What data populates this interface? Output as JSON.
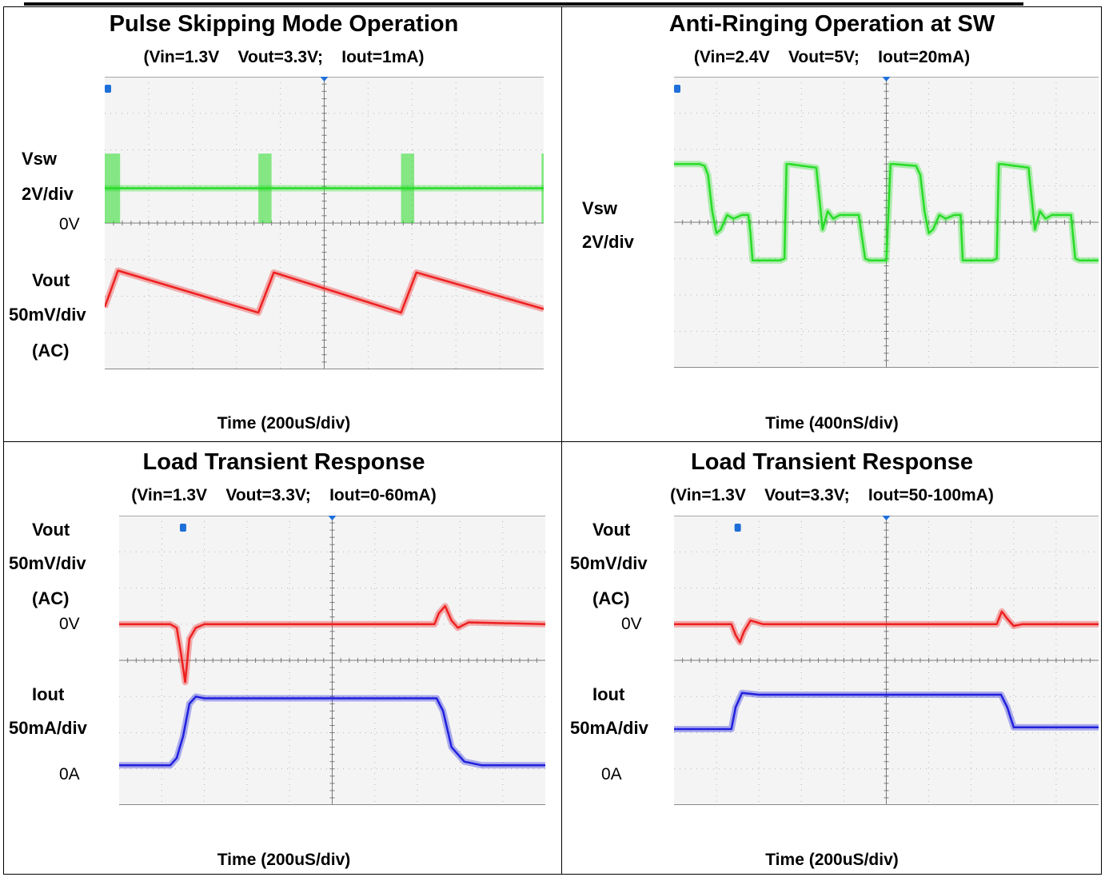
{
  "panels": [
    {
      "title": "Pulse Skipping Mode Operation",
      "conditions": "(Vin=1.3V    Vout=3.3V;    Iout=1mA)",
      "time_label": "Time (200uS/div)",
      "labels": {
        "vsw": "Vsw",
        "vsw_scale": "2V/div",
        "vsw_zero": "0V",
        "vout": "Vout",
        "vout_scale": "50mV/div",
        "vout_coupling": "(AC)"
      }
    },
    {
      "title": "Anti-Ringing Operation at SW",
      "conditions": "(Vin=2.4V    Vout=5V;    Iout=20mA)",
      "time_label": "Time (400nS/div)",
      "labels": {
        "vsw": "Vsw",
        "vsw_scale": "2V/div"
      }
    },
    {
      "title": "Load Transient Response",
      "conditions": "(Vin=1.3V    Vout=3.3V;    Iout=0-60mA)",
      "time_label": "Time (200uS/div)",
      "labels": {
        "vout": "Vout",
        "vout_scale": "50mV/div",
        "vout_coupling": "(AC)",
        "vout_zero": "0V",
        "iout": "Iout",
        "iout_scale": "50mA/div",
        "iout_zero": "0A"
      }
    },
    {
      "title": "Load Transient Response",
      "conditions": "(Vin=1.3V    Vout=3.3V;    Iout=50-100mA)",
      "time_label": "Time (200uS/div)",
      "labels": {
        "vout": "Vout",
        "vout_scale": "50mV/div",
        "vout_coupling": "(AC)",
        "vout_zero": "0V",
        "iout": "Iout",
        "iout_scale": "50mA/div",
        "iout_zero": "0A"
      }
    }
  ],
  "colors": {
    "grid_bg": "#f4f4f4",
    "grid_dot": "#b4b4b4",
    "vsw": "#28dc28",
    "vout": "#ee2020",
    "iout": "#2020dd",
    "marker": "#1e6fd9"
  },
  "chart_data": [
    {
      "type": "line",
      "title": "Pulse Skipping Mode Operation",
      "xlabel": "Time (200uS/div)",
      "xlim": [
        0,
        10
      ],
      "ylim": [
        -4,
        4
      ],
      "grid": true,
      "series": [
        {
          "name": "Vsw",
          "x": [
            0,
            10
          ],
          "y": [
            0.95,
            0.95
          ],
          "bursts_x": [
            [
              0,
              0.35
            ],
            [
              3.5,
              3.8
            ],
            [
              6.75,
              7.05
            ],
            [
              9.95,
              10.0
            ]
          ],
          "burst_y": [
            0,
            1.9
          ]
        },
        {
          "name": "Vout",
          "x": [
            0,
            0.3,
            3.5,
            3.85,
            6.75,
            7.1,
            10.0
          ],
          "y": [
            -2.3,
            -1.3,
            -2.45,
            -1.35,
            -2.45,
            -1.35,
            -2.35
          ]
        }
      ]
    },
    {
      "type": "line",
      "title": "Anti-Ringing Operation at SW",
      "xlabel": "Time (400nS/div)",
      "xlim": [
        0,
        10
      ],
      "ylim": [
        -4,
        4
      ],
      "grid": true,
      "series": [
        {
          "name": "Vsw",
          "x": [
            0,
            0.6,
            0.72,
            0.8,
            0.9,
            1.0,
            1.1,
            1.25,
            1.4,
            1.6,
            1.75,
            1.8,
            1.85,
            2.5,
            2.6,
            2.65,
            2.72,
            3.35,
            3.42,
            3.5,
            3.62,
            3.75,
            3.9,
            4.1,
            4.35,
            4.5,
            4.6,
            4.65,
            5.0,
            5.1,
            5.18,
            5.7,
            5.8,
            5.9,
            6.0,
            6.1,
            6.25,
            6.4,
            6.6,
            6.75,
            6.8,
            6.85,
            7.5,
            7.6,
            7.65,
            7.72,
            8.35,
            8.42,
            8.5,
            8.62,
            8.75,
            8.9,
            9.1,
            9.35,
            9.45,
            9.55,
            9.6,
            10.0
          ],
          "y": [
            1.6,
            1.6,
            1.55,
            1.3,
            0.3,
            -0.3,
            -0.2,
            0.2,
            0.1,
            0.2,
            0.2,
            -0.3,
            -1.05,
            -1.05,
            -1.0,
            1.6,
            1.6,
            1.5,
            0.7,
            -0.2,
            0.3,
            0.1,
            0.2,
            0.2,
            0.2,
            -1.0,
            -1.05,
            -1.05,
            -1.05,
            1.6,
            1.6,
            1.55,
            1.3,
            0.3,
            -0.3,
            -0.2,
            0.2,
            0.1,
            0.2,
            0.2,
            -1.05,
            -1.05,
            -1.05,
            -1.0,
            1.6,
            1.6,
            1.5,
            0.7,
            -0.2,
            0.3,
            0.1,
            0.2,
            0.2,
            0.2,
            -1.0,
            -1.05,
            -1.05,
            -1.05
          ]
        }
      ]
    },
    {
      "type": "line",
      "title": "Load Transient Response",
      "xlabel": "Time (200uS/div)",
      "xlim": [
        0,
        10
      ],
      "ylim": [
        -4,
        4
      ],
      "grid": true,
      "series": [
        {
          "name": "Vout",
          "x": [
            0,
            1.2,
            1.35,
            1.45,
            1.55,
            1.65,
            1.8,
            2.0,
            2.5,
            7.4,
            7.5,
            7.65,
            7.8,
            7.95,
            8.2,
            10.0
          ],
          "y": [
            1.0,
            1.0,
            0.9,
            0.2,
            -0.6,
            0.6,
            0.9,
            1.0,
            1.0,
            1.0,
            1.3,
            1.5,
            1.1,
            0.9,
            1.05,
            1.0
          ]
        },
        {
          "name": "Iout",
          "x": [
            0,
            1.2,
            1.35,
            1.5,
            1.65,
            1.8,
            2.0,
            7.45,
            7.6,
            7.8,
            8.1,
            8.5,
            10.0
          ],
          "y": [
            -2.9,
            -2.9,
            -2.7,
            -2.1,
            -1.2,
            -1.0,
            -1.05,
            -1.05,
            -1.4,
            -2.4,
            -2.8,
            -2.9,
            -2.9
          ]
        }
      ]
    },
    {
      "type": "line",
      "title": "Load Transient Response",
      "xlabel": "Time (200uS/div)",
      "xlim": [
        0,
        10
      ],
      "ylim": [
        -4,
        4
      ],
      "grid": true,
      "series": [
        {
          "name": "Vout",
          "x": [
            0,
            1.35,
            1.45,
            1.55,
            1.65,
            1.8,
            2.1,
            7.6,
            7.72,
            7.85,
            8.0,
            8.2,
            10.0
          ],
          "y": [
            1.0,
            1.0,
            0.7,
            0.5,
            0.8,
            1.1,
            1.0,
            1.0,
            1.35,
            1.15,
            0.95,
            1.0,
            1.0
          ]
        },
        {
          "name": "Iout",
          "x": [
            0,
            1.35,
            1.45,
            1.6,
            2.0,
            7.7,
            7.85,
            8.0,
            8.3,
            10.0
          ],
          "y": [
            -1.9,
            -1.9,
            -1.3,
            -0.9,
            -0.95,
            -0.95,
            -1.3,
            -1.85,
            -1.85,
            -1.85
          ]
        }
      ]
    }
  ]
}
